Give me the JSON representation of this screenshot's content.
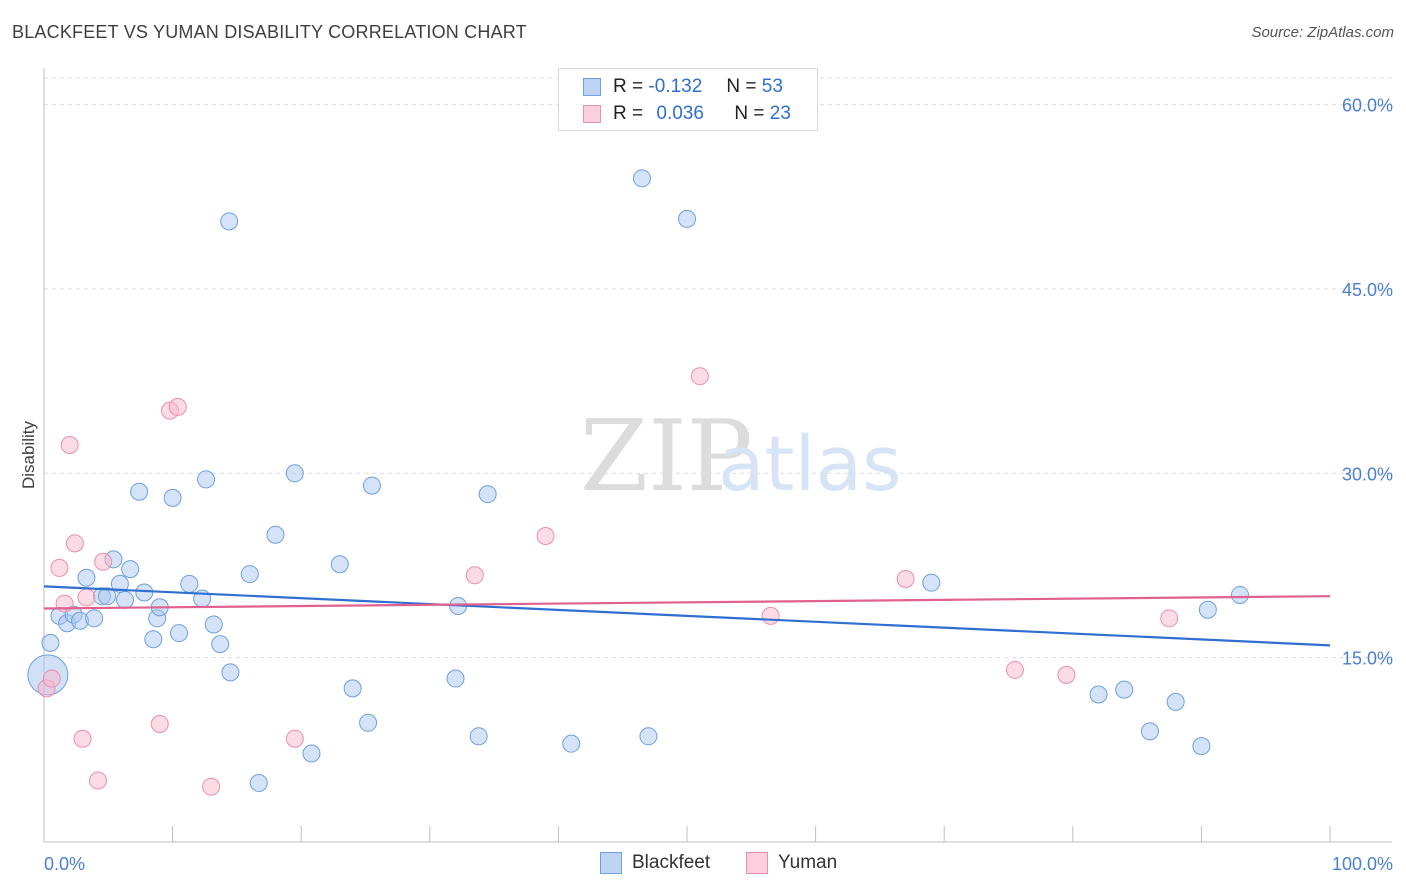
{
  "header": {
    "title": "BLACKFEET VS YUMAN DISABILITY CORRELATION CHART",
    "source": "Source: ZipAtlas.com"
  },
  "watermark": {
    "zip": "ZIP",
    "atlas": "atlas"
  },
  "legend": {
    "r_label": "R =",
    "n_label": "N =",
    "rows": [
      {
        "r": "-0.132",
        "n": "53",
        "color": "#a9c8f0"
      },
      {
        "r": "0.036",
        "n": "23",
        "color": "#f7b8ca"
      }
    ]
  },
  "chart_data": {
    "type": "scatter",
    "title": "BLACKFEET VS YUMAN DISABILITY CORRELATION CHART",
    "ylabel": "Disability",
    "xlabel": "",
    "xlim": [
      0,
      100
    ],
    "ylim": [
      0,
      62
    ],
    "x_tick_labels": [
      "0.0%",
      "100.0%"
    ],
    "y_ticks": [
      15,
      30,
      45,
      60
    ],
    "y_tick_labels": [
      "15.0%",
      "30.0%",
      "45.0%",
      "60.0%"
    ],
    "grid": true,
    "legend_position": "top-center",
    "series": [
      {
        "name": "Blackfeet",
        "color": "#a9c8f0",
        "stroke": "#6f9fe0",
        "line_color": "#2f6fd0",
        "trend": {
          "x": [
            0,
            100
          ],
          "y": [
            20.8,
            16.0
          ]
        },
        "points": [
          {
            "x": 0.5,
            "y": 16.2
          },
          {
            "x": 1.2,
            "y": 18.4
          },
          {
            "x": 1.8,
            "y": 17.8
          },
          {
            "x": 2.3,
            "y": 18.5
          },
          {
            "x": 2.8,
            "y": 18.0
          },
          {
            "x": 3.3,
            "y": 21.5
          },
          {
            "x": 3.9,
            "y": 18.2
          },
          {
            "x": 4.5,
            "y": 20.0
          },
          {
            "x": 4.9,
            "y": 20.0
          },
          {
            "x": 5.4,
            "y": 23.0
          },
          {
            "x": 5.9,
            "y": 21.0
          },
          {
            "x": 6.3,
            "y": 19.7
          },
          {
            "x": 6.7,
            "y": 22.2
          },
          {
            "x": 7.4,
            "y": 28.5
          },
          {
            "x": 7.8,
            "y": 20.3
          },
          {
            "x": 8.5,
            "y": 16.5
          },
          {
            "x": 8.8,
            "y": 18.2
          },
          {
            "x": 9.0,
            "y": 19.1
          },
          {
            "x": 10.0,
            "y": 28.0
          },
          {
            "x": 10.5,
            "y": 17.0
          },
          {
            "x": 11.3,
            "y": 21.0
          },
          {
            "x": 12.3,
            "y": 19.8
          },
          {
            "x": 12.6,
            "y": 29.5
          },
          {
            "x": 13.2,
            "y": 17.7
          },
          {
            "x": 13.7,
            "y": 16.1
          },
          {
            "x": 14.4,
            "y": 50.5
          },
          {
            "x": 14.5,
            "y": 13.8
          },
          {
            "x": 16.0,
            "y": 21.8
          },
          {
            "x": 16.7,
            "y": 4.8
          },
          {
            "x": 18.0,
            "y": 25.0
          },
          {
            "x": 19.5,
            "y": 30.0
          },
          {
            "x": 20.8,
            "y": 7.2
          },
          {
            "x": 23.0,
            "y": 22.6
          },
          {
            "x": 24.0,
            "y": 12.5
          },
          {
            "x": 25.2,
            "y": 9.7
          },
          {
            "x": 25.5,
            "y": 29.0
          },
          {
            "x": 32.0,
            "y": 13.3
          },
          {
            "x": 32.2,
            "y": 19.2
          },
          {
            "x": 33.8,
            "y": 8.6
          },
          {
            "x": 34.5,
            "y": 28.3
          },
          {
            "x": 41.0,
            "y": 8.0
          },
          {
            "x": 46.5,
            "y": 54.0
          },
          {
            "x": 47.0,
            "y": 8.6
          },
          {
            "x": 50.0,
            "y": 50.7
          },
          {
            "x": 69.0,
            "y": 21.1
          },
          {
            "x": 82.0,
            "y": 12.0
          },
          {
            "x": 84.0,
            "y": 12.4
          },
          {
            "x": 86.0,
            "y": 9.0
          },
          {
            "x": 88.0,
            "y": 11.4
          },
          {
            "x": 90.0,
            "y": 7.8
          },
          {
            "x": 90.5,
            "y": 18.9
          },
          {
            "x": 93.0,
            "y": 20.1
          },
          {
            "x": 0.3,
            "y": 13.6,
            "big": true
          }
        ]
      },
      {
        "name": "Yuman",
        "color": "#f7b8ca",
        "stroke": "#ec8fab",
        "line_color": "#e0608e",
        "trend": {
          "x": [
            0,
            100
          ],
          "y": [
            19.0,
            20.0
          ]
        },
        "points": [
          {
            "x": 0.2,
            "y": 12.5
          },
          {
            "x": 0.6,
            "y": 13.3
          },
          {
            "x": 1.2,
            "y": 22.3
          },
          {
            "x": 1.6,
            "y": 19.4
          },
          {
            "x": 2.0,
            "y": 32.3
          },
          {
            "x": 2.4,
            "y": 24.3
          },
          {
            "x": 3.0,
            "y": 8.4
          },
          {
            "x": 3.3,
            "y": 19.9
          },
          {
            "x": 4.2,
            "y": 5.0
          },
          {
            "x": 4.6,
            "y": 22.8
          },
          {
            "x": 9.0,
            "y": 9.6
          },
          {
            "x": 9.8,
            "y": 35.1
          },
          {
            "x": 10.4,
            "y": 35.4
          },
          {
            "x": 13.0,
            "y": 4.5
          },
          {
            "x": 19.5,
            "y": 8.4
          },
          {
            "x": 33.5,
            "y": 21.7
          },
          {
            "x": 39.0,
            "y": 24.9
          },
          {
            "x": 51.0,
            "y": 37.9
          },
          {
            "x": 56.5,
            "y": 18.4
          },
          {
            "x": 67.0,
            "y": 21.4
          },
          {
            "x": 75.5,
            "y": 14.0
          },
          {
            "x": 79.5,
            "y": 13.6
          },
          {
            "x": 87.5,
            "y": 18.2
          }
        ]
      }
    ]
  }
}
